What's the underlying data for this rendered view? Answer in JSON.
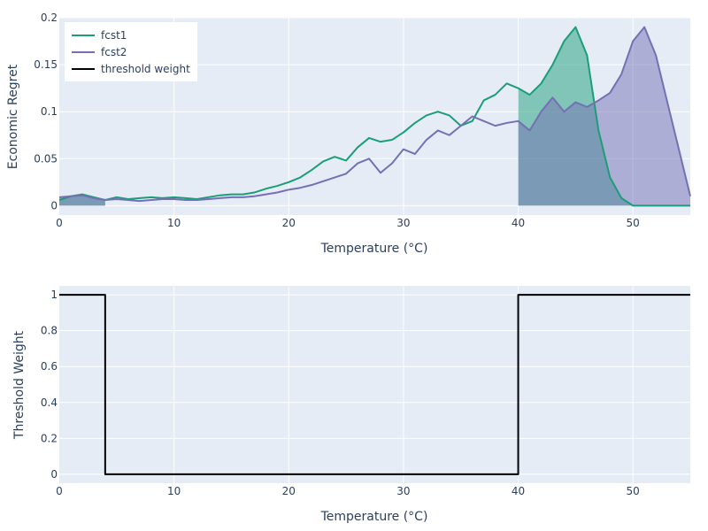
{
  "colors": {
    "fcst1": "#1b9e77",
    "fcst2": "#7570b3",
    "threshold": "#000000",
    "plot_bg": "#e5ecf6"
  },
  "chart_data": [
    {
      "type": "line",
      "title": "",
      "xlabel": "Temperature (°C)",
      "ylabel": "Economic Regret",
      "xlim": [
        0,
        55
      ],
      "ylim": [
        -0.01,
        0.2
      ],
      "xticks": [
        0,
        10,
        20,
        30,
        40,
        50
      ],
      "xtick_labels": [
        "0",
        "10",
        "20",
        "30",
        "40",
        "50"
      ],
      "yticks": [
        0,
        0.05,
        0.1,
        0.15,
        0.2
      ],
      "ytick_labels": [
        "0",
        "0.05",
        "0.1",
        "0.15",
        "0.2"
      ],
      "legend": {
        "position": "top-left",
        "entries": [
          "fcst1",
          "fcst2",
          "threshold weight"
        ]
      },
      "series": [
        {
          "name": "fcst1",
          "x": [
            0,
            1,
            2,
            3,
            4,
            5,
            6,
            7,
            8,
            9,
            10,
            11,
            12,
            13,
            14,
            15,
            16,
            17,
            18,
            19,
            20,
            21,
            22,
            23,
            24,
            25,
            26,
            27,
            28,
            29,
            30,
            31,
            32,
            33,
            34,
            35,
            36,
            37,
            38,
            39,
            40,
            41,
            42,
            43,
            44,
            45,
            46,
            47,
            48,
            49,
            50,
            51,
            52,
            53,
            54,
            55
          ],
          "values": [
            0.006,
            0.01,
            0.012,
            0.009,
            0.006,
            0.009,
            0.007,
            0.008,
            0.009,
            0.008,
            0.009,
            0.008,
            0.007,
            0.009,
            0.011,
            0.012,
            0.012,
            0.014,
            0.018,
            0.021,
            0.025,
            0.03,
            0.038,
            0.047,
            0.052,
            0.048,
            0.062,
            0.072,
            0.068,
            0.07,
            0.078,
            0.088,
            0.096,
            0.1,
            0.096,
            0.085,
            0.09,
            0.112,
            0.118,
            0.13,
            0.125,
            0.118,
            0.13,
            0.15,
            0.175,
            0.19,
            0.16,
            0.08,
            0.03,
            0.008,
            0,
            0,
            0,
            0,
            0,
            0
          ],
          "fill_x": [
            0,
            1,
            2,
            3,
            4,
            40,
            41,
            42,
            43,
            44,
            45,
            46,
            47,
            48,
            49,
            50,
            51,
            52,
            53,
            54,
            55
          ],
          "fill_values": [
            0.006,
            0.01,
            0.012,
            0.009,
            0.006,
            0.125,
            0.118,
            0.13,
            0.15,
            0.175,
            0.19,
            0.16,
            0.08,
            0.03,
            0.008,
            0,
            0,
            0,
            0,
            0,
            0
          ]
        },
        {
          "name": "fcst2",
          "x": [
            0,
            1,
            2,
            3,
            4,
            5,
            6,
            7,
            8,
            9,
            10,
            11,
            12,
            13,
            14,
            15,
            16,
            17,
            18,
            19,
            20,
            21,
            22,
            23,
            24,
            25,
            26,
            27,
            28,
            29,
            30,
            31,
            32,
            33,
            34,
            35,
            36,
            37,
            38,
            39,
            40,
            41,
            42,
            43,
            44,
            45,
            46,
            47,
            48,
            49,
            50,
            51,
            52,
            53,
            54,
            55
          ],
          "values": [
            0.009,
            0.01,
            0.011,
            0.008,
            0.006,
            0.007,
            0.006,
            0.005,
            0.006,
            0.007,
            0.007,
            0.006,
            0.006,
            0.007,
            0.008,
            0.009,
            0.009,
            0.01,
            0.012,
            0.014,
            0.017,
            0.019,
            0.022,
            0.026,
            0.03,
            0.034,
            0.045,
            0.05,
            0.035,
            0.045,
            0.06,
            0.055,
            0.07,
            0.08,
            0.075,
            0.085,
            0.095,
            0.09,
            0.085,
            0.088,
            0.09,
            0.08,
            0.1,
            0.115,
            0.1,
            0.11,
            0.105,
            0.112,
            0.12,
            0.14,
            0.175,
            0.19,
            0.16,
            0.11,
            0.06,
            0.01
          ],
          "fill_x": [
            0,
            1,
            2,
            3,
            4,
            40,
            41,
            42,
            43,
            44,
            45,
            46,
            47,
            48,
            49,
            50,
            51,
            52,
            53,
            54,
            55
          ],
          "fill_values": [
            0.009,
            0.01,
            0.011,
            0.008,
            0.006,
            0.09,
            0.08,
            0.1,
            0.115,
            0.1,
            0.11,
            0.105,
            0.112,
            0.12,
            0.14,
            0.175,
            0.19,
            0.16,
            0.11,
            0.06,
            0.01
          ]
        }
      ]
    },
    {
      "type": "line",
      "title": "",
      "xlabel": "Temperature (°C)",
      "ylabel": "Threshold Weight",
      "xlim": [
        0,
        55
      ],
      "ylim": [
        -0.05,
        1.05
      ],
      "xticks": [
        0,
        10,
        20,
        30,
        40,
        50
      ],
      "xtick_labels": [
        "0",
        "10",
        "20",
        "30",
        "40",
        "50"
      ],
      "yticks": [
        0,
        0.2,
        0.4,
        0.6,
        0.8,
        1
      ],
      "ytick_labels": [
        "0",
        "0.2",
        "0.4",
        "0.6",
        "0.8",
        "1"
      ],
      "series": [
        {
          "name": "threshold weight",
          "x": [
            0,
            4,
            4,
            40,
            40,
            55
          ],
          "values": [
            1,
            1,
            0,
            0,
            1,
            1
          ]
        }
      ]
    }
  ]
}
